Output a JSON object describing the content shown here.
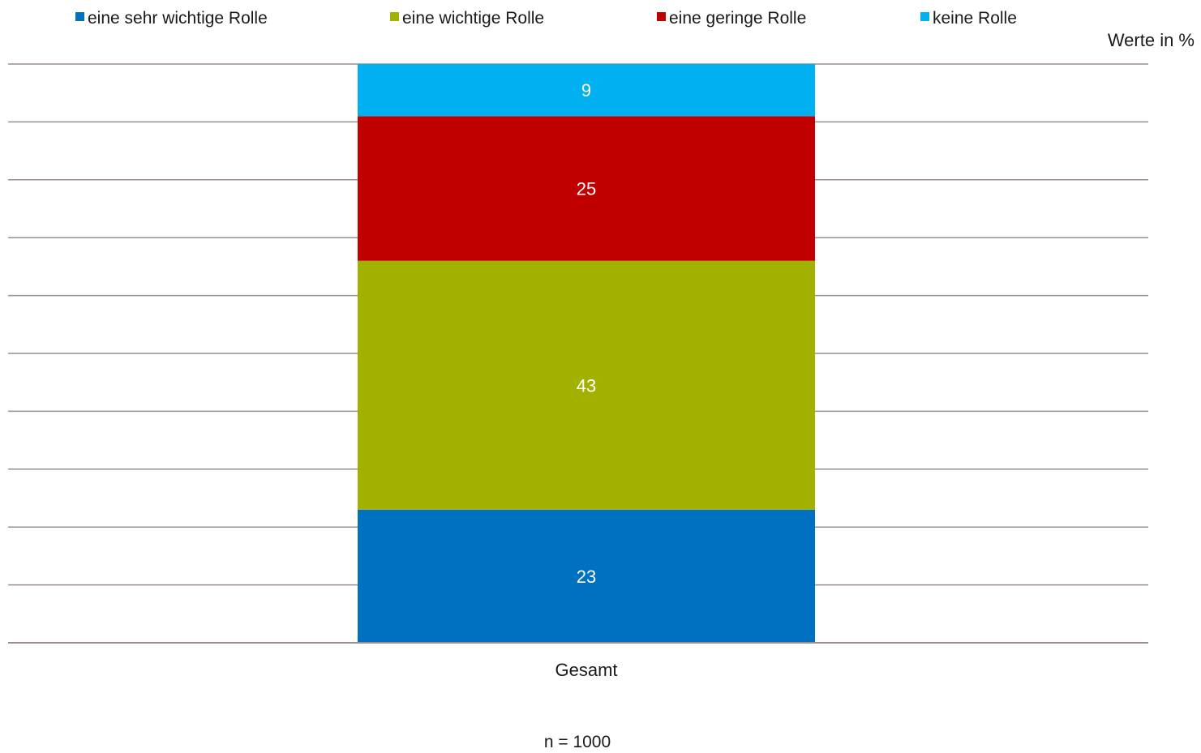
{
  "chart_data": {
    "type": "bar",
    "stacked": true,
    "categories": [
      "Gesamt"
    ],
    "series": [
      {
        "name": "eine sehr wichtige Rolle",
        "color": "#0070C0",
        "values": [
          23
        ]
      },
      {
        "name": "eine wichtige Rolle",
        "color": "#A2B000",
        "values": [
          43
        ]
      },
      {
        "name": "eine geringe Rolle",
        "color": "#C00000",
        "values": [
          25
        ]
      },
      {
        "name": "keine Rolle",
        "color": "#00B0F0",
        "values": [
          9
        ]
      }
    ],
    "ylim": [
      0,
      100
    ],
    "grid": true,
    "legend_position": "top",
    "units_label": "Werte in %",
    "footnote": "n = 1000"
  }
}
